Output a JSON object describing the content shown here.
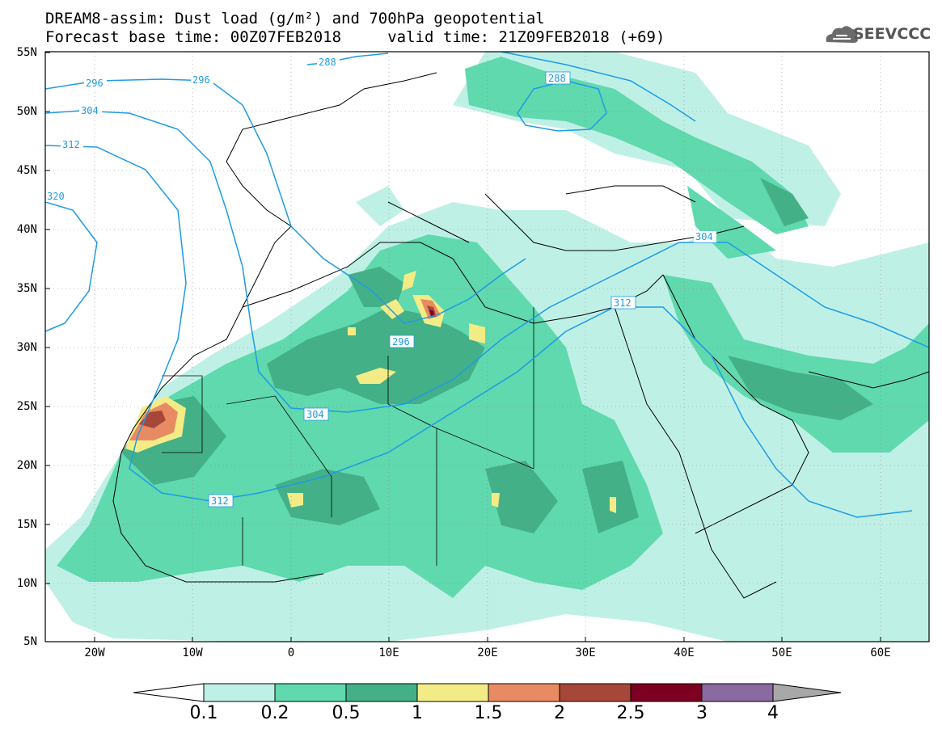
{
  "header": {
    "title_line1": "DREAM8-assim: Dust load (g/m²) and 700hPa geopotential",
    "title_line2": "Forecast base time: 00Z07FEB2018     valid time: 21Z09FEB2018 (+69)",
    "logo_text": "SEEVCCC",
    "logo_icon": "cloud-icon"
  },
  "map": {
    "lat_labels": [
      "55N",
      "50N",
      "45N",
      "40N",
      "35N",
      "30N",
      "25N",
      "20N",
      "15N",
      "10N",
      "5N"
    ],
    "lon_labels": [
      "20W",
      "10W",
      "0",
      "10E",
      "20E",
      "30E",
      "40E",
      "50E",
      "60E"
    ],
    "contour_labels": [
      "288",
      "296",
      "304",
      "312",
      "320",
      "288",
      "304",
      "312",
      "296",
      "304",
      "312"
    ],
    "coastline_color": "#000000",
    "contour_color": "#1e9be6",
    "grid": "dotted"
  },
  "colorbar": {
    "labels": [
      "0.1",
      "0.2",
      "0.5",
      "1",
      "1.5",
      "2",
      "2.5",
      "3",
      "4"
    ],
    "colors": [
      "#ffffff",
      "#bff0e6",
      "#5fd9ad",
      "#44b088",
      "#f3ec86",
      "#e98b62",
      "#a7473a",
      "#7d0022",
      "#8a6aa0",
      "#a8a8a8"
    ]
  }
}
